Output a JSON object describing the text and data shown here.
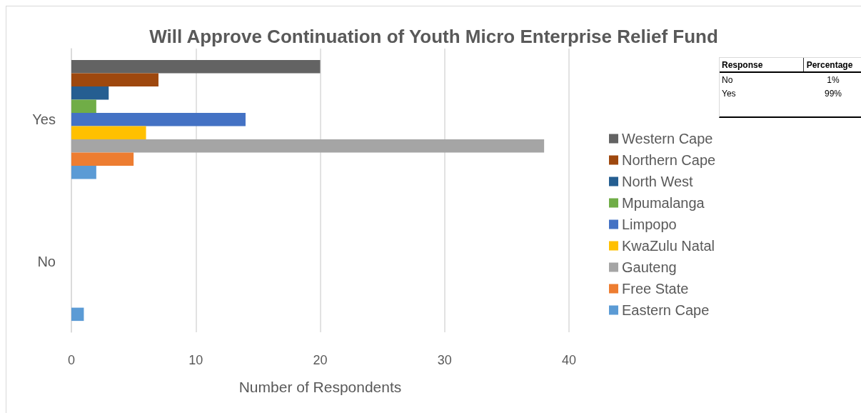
{
  "chart_data": {
    "type": "bar",
    "orientation": "horizontal",
    "title": "Will Approve Continuation of Youth Micro Enterprise Relief Fund",
    "xlabel": "Number of Respondents",
    "categories": [
      "Yes",
      "No"
    ],
    "series": [
      {
        "name": "Western Cape",
        "color": "#636363",
        "values": [
          20,
          0
        ]
      },
      {
        "name": "Northern Cape",
        "color": "#9e480e",
        "values": [
          7,
          0
        ]
      },
      {
        "name": "North West",
        "color": "#255e91",
        "values": [
          3,
          0
        ]
      },
      {
        "name": "Mpumalanga",
        "color": "#70ad47",
        "values": [
          2,
          0
        ]
      },
      {
        "name": "Limpopo",
        "color": "#4472c4",
        "values": [
          14,
          0
        ]
      },
      {
        "name": "KwaZulu Natal",
        "color": "#ffc000",
        "values": [
          6,
          0
        ]
      },
      {
        "name": "Gauteng",
        "color": "#a5a5a5",
        "values": [
          38,
          0
        ]
      },
      {
        "name": "Free State",
        "color": "#ed7d31",
        "values": [
          5,
          0
        ]
      },
      {
        "name": "Eastern Cape",
        "color": "#5b9bd5",
        "values": [
          2,
          1
        ]
      }
    ],
    "xlim": [
      0,
      40
    ],
    "xticks": [
      0,
      10,
      20,
      30,
      40
    ],
    "grid": "x",
    "legend": "right",
    "annotations": [
      "Response",
      "Percentage",
      "No",
      "1%",
      "Yes",
      "99%"
    ]
  }
}
